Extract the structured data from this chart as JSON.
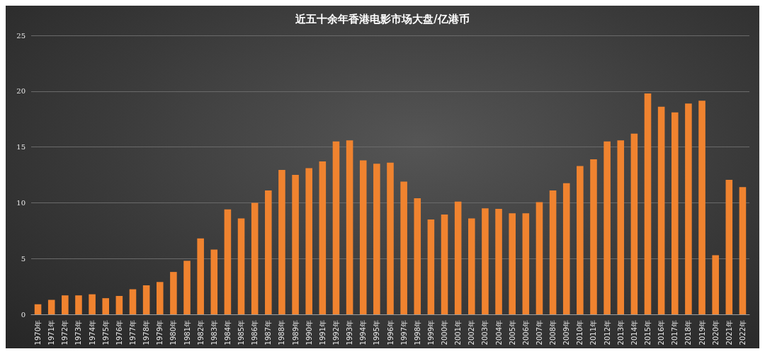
{
  "chart_data": {
    "type": "bar",
    "title": "近五十余年香港电影市场大盘/亿港币",
    "categories": [
      "1970年",
      "1971年",
      "1972年",
      "1973年",
      "1974年",
      "1975年",
      "1976年",
      "1977年",
      "1978年",
      "1979年",
      "1980年",
      "1981年",
      "1982年",
      "1983年",
      "1984年",
      "1985年",
      "1986年",
      "1987年",
      "1988年",
      "1989年",
      "1990年",
      "1991年",
      "1992年",
      "1993年",
      "1994年",
      "1995年",
      "1996年",
      "1997年",
      "1998年",
      "1999年",
      "2000年",
      "2001年",
      "2002年",
      "2003年",
      "2004年",
      "2005年",
      "2006年",
      "2007年",
      "2008年",
      "2009年",
      "2010年",
      "2011年",
      "2012年",
      "2013年",
      "2014年",
      "2015年",
      "2016年",
      "2017年",
      "2018年",
      "2019年",
      "2020年",
      "2021年",
      "2022年"
    ],
    "values": [
      0.9,
      1.3,
      1.7,
      1.7,
      1.8,
      1.45,
      1.65,
      2.25,
      2.6,
      2.9,
      3.8,
      4.8,
      6.8,
      5.8,
      9.4,
      8.6,
      10.0,
      11.1,
      12.95,
      12.5,
      13.1,
      13.7,
      15.5,
      15.6,
      13.8,
      13.5,
      13.6,
      11.9,
      10.4,
      8.5,
      8.95,
      10.1,
      8.6,
      9.5,
      9.45,
      9.05,
      9.05,
      10.05,
      11.1,
      11.75,
      13.3,
      13.9,
      15.5,
      15.6,
      16.2,
      19.8,
      18.6,
      18.1,
      18.9,
      19.15,
      5.3,
      12.05,
      11.4
    ],
    "color": "#f0832f",
    "ylim": [
      0,
      25
    ],
    "yticks": [
      0,
      5,
      10,
      15,
      20,
      25
    ],
    "grid": "y"
  }
}
